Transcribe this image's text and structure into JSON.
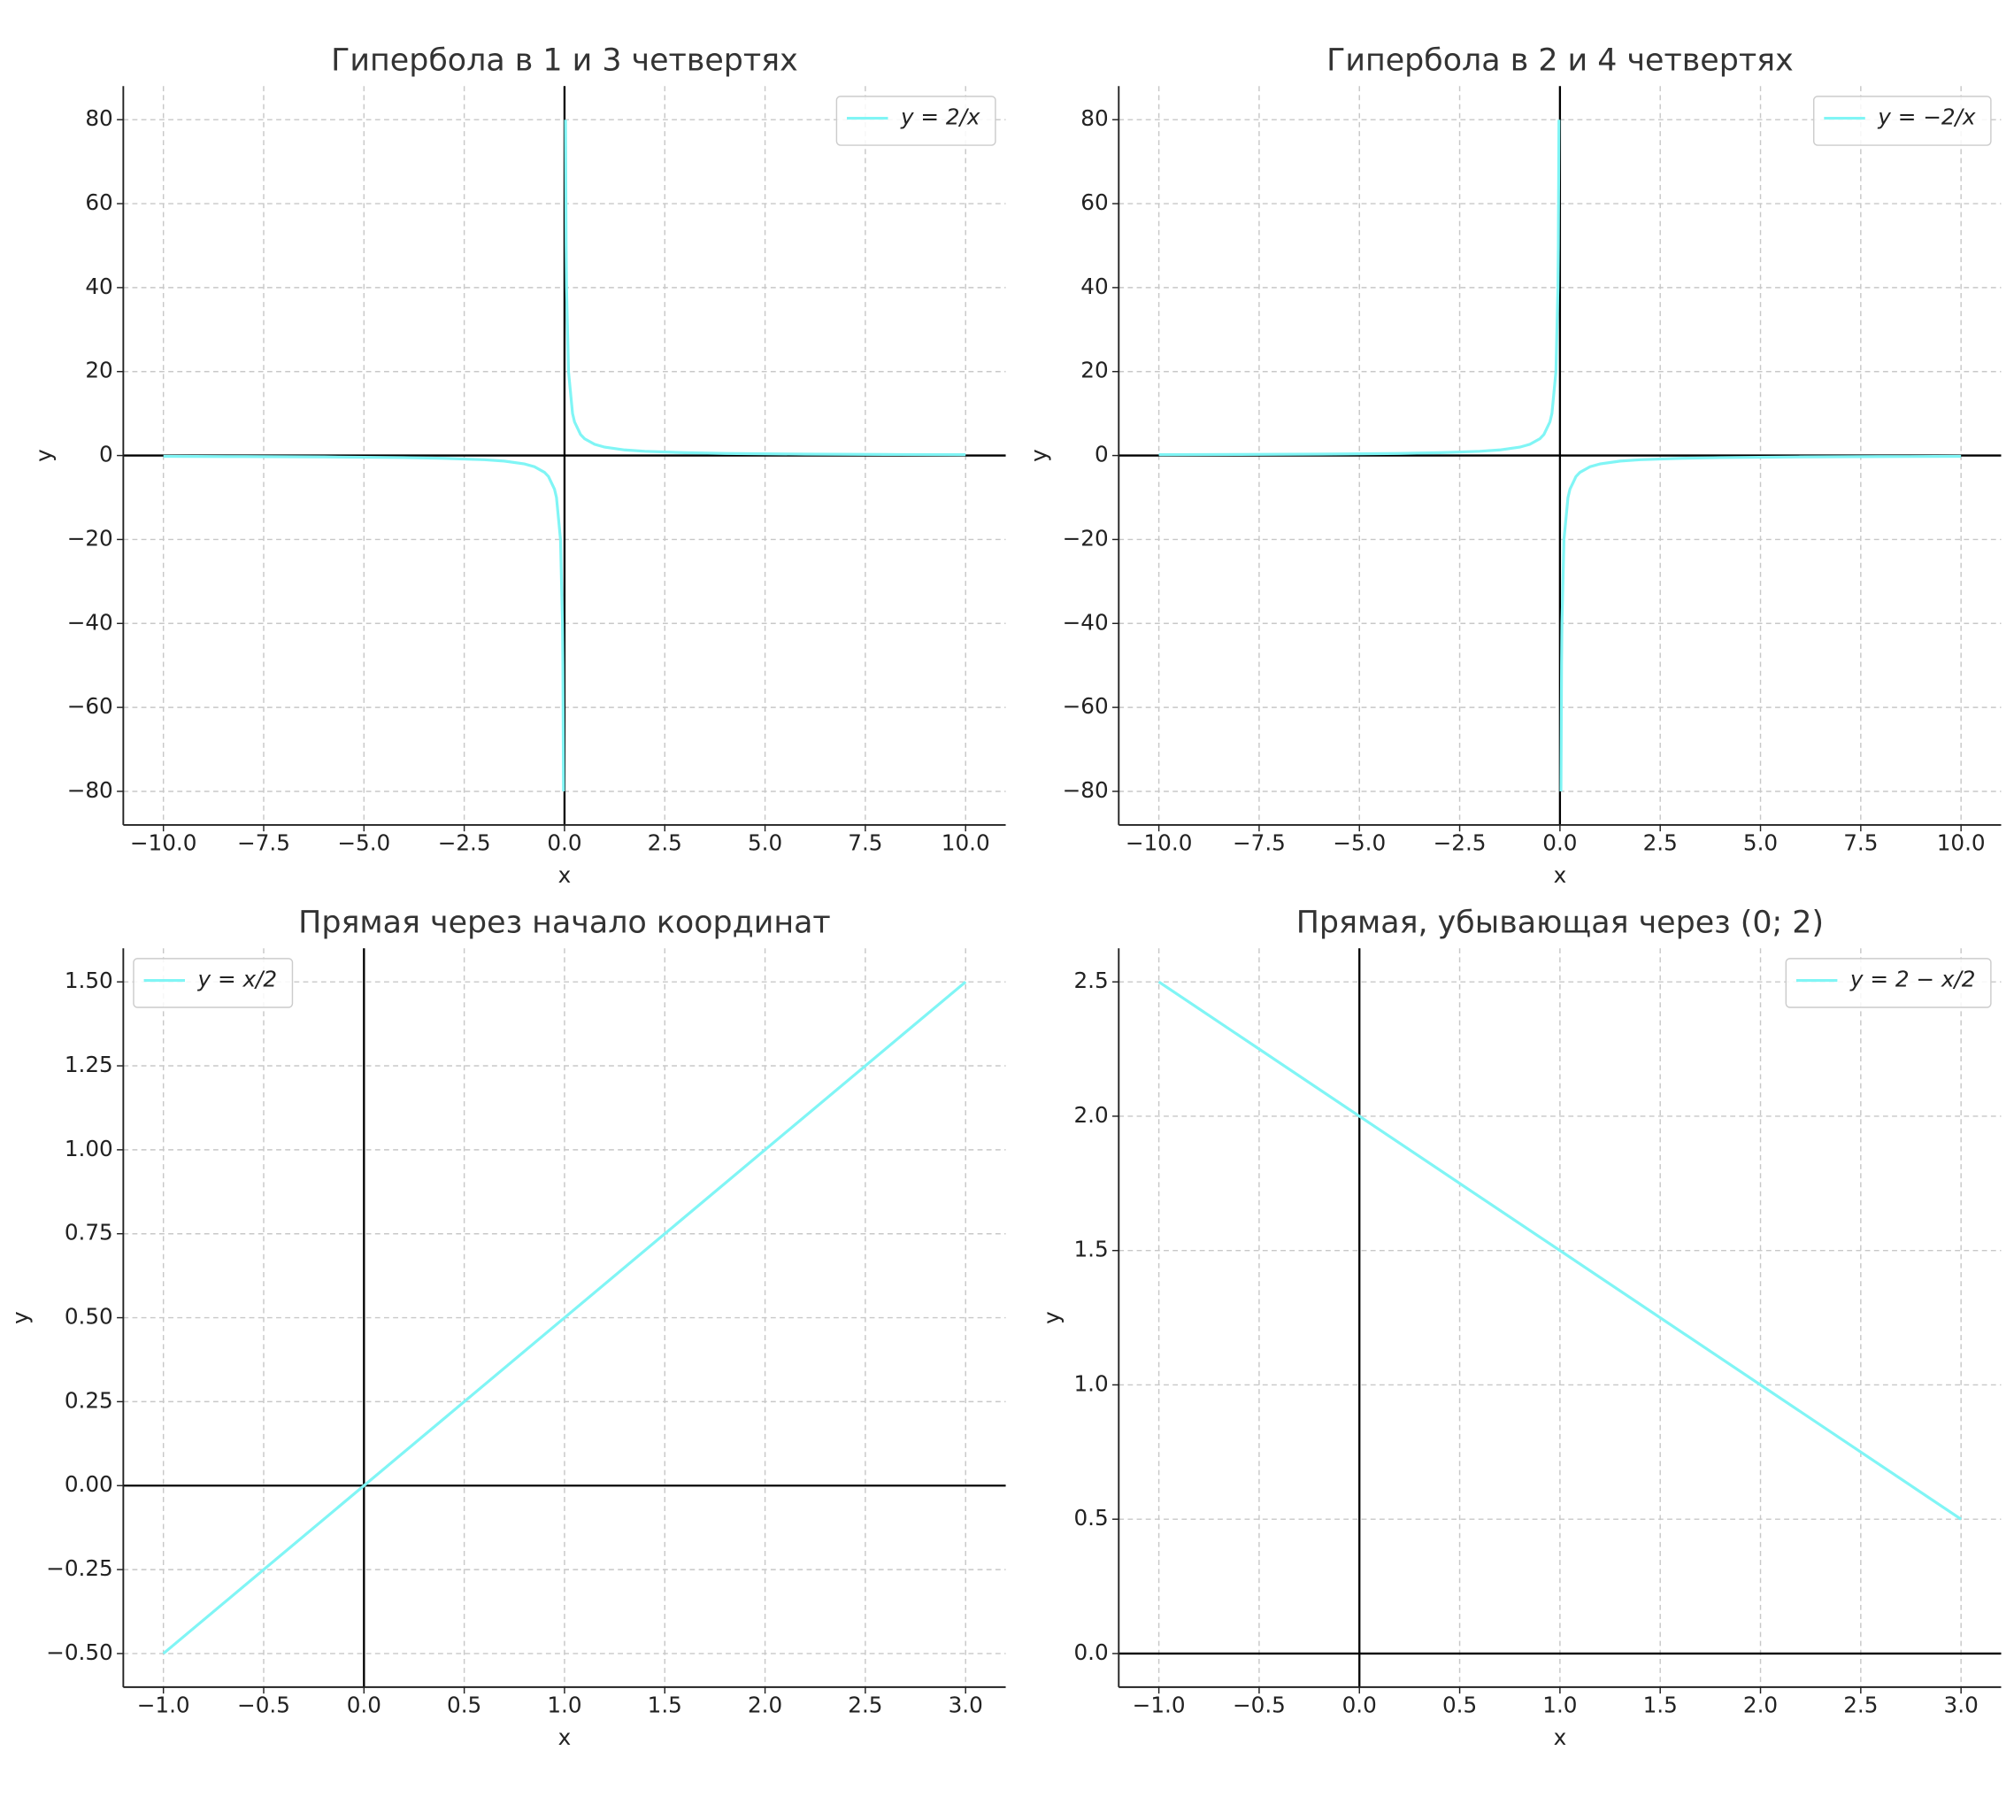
{
  "chart_data": [
    {
      "type": "line",
      "title": "Гипербола в 1 и 3 четвертях",
      "xlabel": "x",
      "ylabel": "y",
      "x": [
        -10,
        -8,
        -6,
        -4,
        -3,
        -2,
        -1.5,
        -1,
        -0.75,
        -0.5,
        -0.4,
        -0.25,
        -0.2,
        -0.1,
        -0.05,
        -0.04,
        -0.025,
        null,
        0.025,
        0.04,
        0.05,
        0.1,
        0.2,
        0.25,
        0.4,
        0.5,
        0.75,
        1,
        1.5,
        2,
        3,
        4,
        6,
        8,
        10
      ],
      "series": [
        {
          "name": "y = 2/x",
          "color": "#80f5f5",
          "values": [
            -0.2,
            -0.25,
            -0.33,
            -0.5,
            -0.67,
            -1,
            -1.33,
            -2,
            -2.67,
            -4,
            -5,
            -8,
            -10,
            -20,
            -40,
            -50,
            -80,
            null,
            80,
            50,
            40,
            20,
            10,
            8,
            5,
            4,
            2.67,
            2,
            1.33,
            1,
            0.67,
            0.5,
            0.33,
            0.25,
            0.2
          ]
        }
      ],
      "xlim": [
        -11,
        11
      ],
      "ylim": [
        -88,
        88
      ],
      "xticks": [
        {
          "value": -10,
          "label": "−10.0"
        },
        {
          "value": -7.5,
          "label": "−7.5"
        },
        {
          "value": -5,
          "label": "−5.0"
        },
        {
          "value": -2.5,
          "label": "−2.5"
        },
        {
          "value": 0,
          "label": "0.0"
        },
        2.5,
        {
          "value": 5,
          "label": "5.0"
        },
        7.5,
        {
          "value": 10,
          "label": "10.0"
        }
      ],
      "yticks": [
        {
          "value": -80,
          "label": "−80"
        },
        {
          "value": -60,
          "label": "−60"
        },
        {
          "value": -40,
          "label": "−40"
        },
        {
          "value": -20,
          "label": "−20"
        },
        0,
        20,
        40,
        60,
        80
      ],
      "grid": true,
      "legend": "upper right"
    },
    {
      "type": "line",
      "title": "Гипербола в 2 и 4 четвертях",
      "xlabel": "x",
      "ylabel": "y",
      "x": [
        -10,
        -8,
        -6,
        -4,
        -3,
        -2,
        -1.5,
        -1,
        -0.75,
        -0.5,
        -0.4,
        -0.25,
        -0.2,
        -0.1,
        -0.05,
        -0.04,
        -0.025,
        null,
        0.025,
        0.04,
        0.05,
        0.1,
        0.2,
        0.25,
        0.4,
        0.5,
        0.75,
        1,
        1.5,
        2,
        3,
        4,
        6,
        8,
        10
      ],
      "series": [
        {
          "name": "y = −2/x",
          "color": "#80f5f5",
          "values": [
            0.2,
            0.25,
            0.33,
            0.5,
            0.67,
            1,
            1.33,
            2,
            2.67,
            4,
            5,
            8,
            10,
            20,
            40,
            50,
            80,
            null,
            -80,
            -50,
            -40,
            -20,
            -10,
            -8,
            -5,
            -4,
            -2.67,
            -2,
            -1.33,
            -1,
            -0.67,
            -0.5,
            -0.33,
            -0.25,
            -0.2
          ]
        }
      ],
      "xlim": [
        -11,
        11
      ],
      "ylim": [
        -88,
        88
      ],
      "xticks": [
        {
          "value": -10,
          "label": "−10.0"
        },
        {
          "value": -7.5,
          "label": "−7.5"
        },
        {
          "value": -5,
          "label": "−5.0"
        },
        {
          "value": -2.5,
          "label": "−2.5"
        },
        {
          "value": 0,
          "label": "0.0"
        },
        2.5,
        {
          "value": 5,
          "label": "5.0"
        },
        7.5,
        {
          "value": 10,
          "label": "10.0"
        }
      ],
      "yticks": [
        {
          "value": -80,
          "label": "−80"
        },
        {
          "value": -60,
          "label": "−60"
        },
        {
          "value": -40,
          "label": "−40"
        },
        {
          "value": -20,
          "label": "−20"
        },
        0,
        20,
        40,
        60,
        80
      ],
      "grid": true,
      "legend": "upper right"
    },
    {
      "type": "line",
      "title": "Прямая через начало координат",
      "xlabel": "x",
      "ylabel": "y",
      "x": [
        -1,
        3
      ],
      "series": [
        {
          "name": "y = x/2",
          "color": "#80f5f5",
          "values": [
            -0.5,
            1.5
          ]
        }
      ],
      "xlim": [
        -1.2,
        3.2
      ],
      "ylim": [
        -0.6,
        1.6
      ],
      "xticks": [
        {
          "value": -1,
          "label": "−1.0"
        },
        {
          "value": -0.5,
          "label": "−0.5"
        },
        {
          "value": 0,
          "label": "0.0"
        },
        0.5,
        {
          "value": 1,
          "label": "1.0"
        },
        1.5,
        {
          "value": 2,
          "label": "2.0"
        },
        2.5,
        {
          "value": 3,
          "label": "3.0"
        }
      ],
      "yticks": [
        {
          "value": -0.5,
          "label": "−0.50"
        },
        {
          "value": -0.25,
          "label": "−0.25"
        },
        {
          "value": 0,
          "label": "0.00"
        },
        0.25,
        {
          "value": 0.5,
          "label": "0.50"
        },
        0.75,
        {
          "value": 1,
          "label": "1.00"
        },
        1.25,
        {
          "value": 1.5,
          "label": "1.50"
        }
      ],
      "grid": true,
      "legend": "upper left"
    },
    {
      "type": "line",
      "title": "Прямая, убывающая через (0; 2)",
      "xlabel": "x",
      "ylabel": "y",
      "x": [
        -1,
        3
      ],
      "series": [
        {
          "name": "y = 2 − x/2",
          "color": "#80f5f5",
          "values": [
            2.5,
            0.5
          ]
        }
      ],
      "xlim": [
        -1.2,
        3.2
      ],
      "ylim": [
        -0.125,
        2.625
      ],
      "xticks": [
        {
          "value": -1,
          "label": "−1.0"
        },
        {
          "value": -0.5,
          "label": "−0.5"
        },
        {
          "value": 0,
          "label": "0.0"
        },
        0.5,
        {
          "value": 1,
          "label": "1.0"
        },
        1.5,
        {
          "value": 2,
          "label": "2.0"
        },
        2.5,
        {
          "value": 3,
          "label": "3.0"
        }
      ],
      "yticks": [
        {
          "value": 0,
          "label": "0.0"
        },
        0.5,
        {
          "value": 1,
          "label": "1.0"
        },
        1.5,
        {
          "value": 2,
          "label": "2.0"
        },
        2.5
      ],
      "grid": true,
      "legend": "upper right"
    }
  ]
}
